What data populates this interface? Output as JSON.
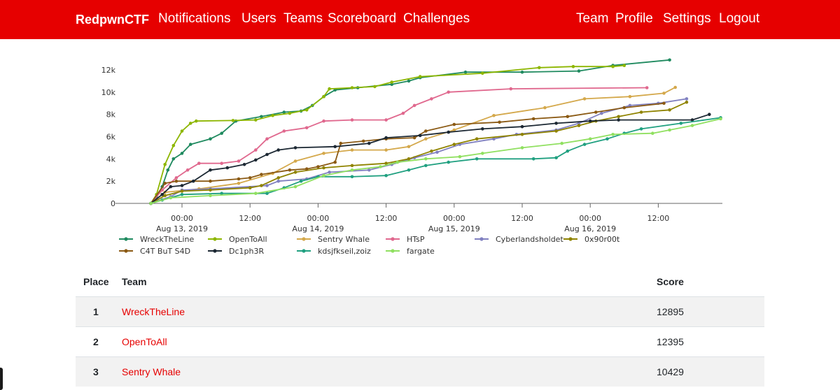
{
  "nav": {
    "brand": "RedpwnCTF",
    "left_items": [
      "Notifications",
      "Users",
      "Teams",
      "Scoreboard",
      "Challenges"
    ],
    "right_items": [
      "Team",
      "Profile",
      "Settings",
      "Logout"
    ]
  },
  "colors": {
    "accent": "#e60000",
    "row_stripe": "#f2f2f2"
  },
  "chart_data": {
    "type": "line",
    "y_ticks": [
      "0",
      "2k",
      "4k",
      "6k",
      "8k",
      "10k",
      "12k"
    ],
    "ylim": [
      0,
      13000
    ],
    "x_ticks": [
      {
        "time": "00:00",
        "date": "Aug 13, 2019",
        "hours": 0
      },
      {
        "time": "12:00",
        "date": "",
        "hours": 12
      },
      {
        "time": "00:00",
        "date": "Aug 14, 2019",
        "hours": 24
      },
      {
        "time": "12:00",
        "date": "",
        "hours": 36
      },
      {
        "time": "00:00",
        "date": "Aug 15, 2019",
        "hours": 48
      },
      {
        "time": "12:00",
        "date": "",
        "hours": 60
      },
      {
        "time": "00:00",
        "date": "Aug 16, 2019",
        "hours": 72
      },
      {
        "time": "12:00",
        "date": "",
        "hours": 84
      }
    ],
    "legend_placement": "bottom",
    "series": [
      {
        "name": "WreckTheLine",
        "color": "#1f8a5f",
        "points": [
          [
            -5.5,
            0
          ],
          [
            -4.5,
            500
          ],
          [
            -3.5,
            1500
          ],
          [
            -2.5,
            3000
          ],
          [
            -1.5,
            4000
          ],
          [
            0,
            4500
          ],
          [
            1.5,
            5300
          ],
          [
            5,
            5800
          ],
          [
            7,
            6300
          ],
          [
            9.5,
            7400
          ],
          [
            14,
            7800
          ],
          [
            18,
            8200
          ],
          [
            21,
            8300
          ],
          [
            23,
            8800
          ],
          [
            25,
            9600
          ],
          [
            27,
            10200
          ],
          [
            31,
            10400
          ],
          [
            37,
            10700
          ],
          [
            40,
            11000
          ],
          [
            42,
            11300
          ],
          [
            50,
            11800
          ],
          [
            60,
            11800
          ],
          [
            70,
            11900
          ],
          [
            76,
            12400
          ],
          [
            86,
            12895
          ]
        ]
      },
      {
        "name": "OpenToAll",
        "color": "#8db600",
        "points": [
          [
            -5.5,
            0
          ],
          [
            -4.5,
            800
          ],
          [
            -3,
            3500
          ],
          [
            -1.5,
            5200
          ],
          [
            0,
            6500
          ],
          [
            1.5,
            7200
          ],
          [
            2.5,
            7400
          ],
          [
            9,
            7450
          ],
          [
            13,
            7500
          ],
          [
            16,
            7900
          ],
          [
            19,
            8100
          ],
          [
            22,
            8400
          ],
          [
            25,
            9600
          ],
          [
            26,
            10300
          ],
          [
            30,
            10400
          ],
          [
            34,
            10500
          ],
          [
            37,
            10900
          ],
          [
            42,
            11400
          ],
          [
            53,
            11700
          ],
          [
            63,
            12200
          ],
          [
            69,
            12300
          ],
          [
            76,
            12300
          ],
          [
            78,
            12395
          ]
        ]
      },
      {
        "name": "Sentry Whale",
        "color": "#d4a84b",
        "points": [
          [
            -5.5,
            0
          ],
          [
            -3,
            1000
          ],
          [
            3,
            1300
          ],
          [
            10,
            1800
          ],
          [
            16,
            2700
          ],
          [
            20,
            3800
          ],
          [
            25,
            4500
          ],
          [
            30,
            4800
          ],
          [
            36,
            4800
          ],
          [
            40,
            5100
          ],
          [
            43,
            5800
          ],
          [
            48,
            6600
          ],
          [
            55,
            7900
          ],
          [
            64,
            8600
          ],
          [
            71,
            9400
          ],
          [
            79,
            9600
          ],
          [
            85,
            9900
          ],
          [
            87,
            10429
          ]
        ]
      },
      {
        "name": "HTsP",
        "color": "#e0688e",
        "points": [
          [
            -5.5,
            0
          ],
          [
            -3.5,
            1200
          ],
          [
            -1,
            2300
          ],
          [
            1,
            3000
          ],
          [
            3,
            3600
          ],
          [
            7,
            3600
          ],
          [
            10,
            3800
          ],
          [
            13,
            4800
          ],
          [
            15,
            5800
          ],
          [
            18,
            6500
          ],
          [
            22,
            6800
          ],
          [
            25,
            7400
          ],
          [
            30,
            7500
          ],
          [
            36,
            7500
          ],
          [
            39,
            8100
          ],
          [
            41,
            8800
          ],
          [
            44,
            9400
          ],
          [
            47,
            10000
          ],
          [
            58,
            10300
          ],
          [
            82,
            10400
          ]
        ]
      },
      {
        "name": "Cyberlandsholdet",
        "color": "#8080c0",
        "points": [
          [
            -5.5,
            0
          ],
          [
            -2,
            600
          ],
          [
            0,
            1200
          ],
          [
            5,
            1300
          ],
          [
            15,
            1600
          ],
          [
            17,
            2000
          ],
          [
            22,
            2200
          ],
          [
            26,
            2800
          ],
          [
            33,
            3000
          ],
          [
            37,
            3500
          ],
          [
            41,
            4100
          ],
          [
            45,
            4600
          ],
          [
            49,
            5300
          ],
          [
            55,
            5800
          ],
          [
            59,
            6200
          ],
          [
            66,
            6600
          ],
          [
            70,
            7200
          ],
          [
            74,
            8100
          ],
          [
            79,
            8800
          ],
          [
            84,
            9000
          ],
          [
            89,
            9400
          ]
        ]
      },
      {
        "name": "0x90r00t",
        "color": "#8f8300",
        "points": [
          [
            -5.5,
            0
          ],
          [
            -3,
            700
          ],
          [
            0,
            1100
          ],
          [
            5,
            1200
          ],
          [
            12,
            1400
          ],
          [
            14,
            1600
          ],
          [
            17,
            2300
          ],
          [
            20,
            2800
          ],
          [
            25,
            3200
          ],
          [
            30,
            3400
          ],
          [
            36,
            3600
          ],
          [
            40,
            4000
          ],
          [
            44,
            4700
          ],
          [
            48,
            5300
          ],
          [
            52,
            5800
          ],
          [
            60,
            6200
          ],
          [
            66,
            6500
          ],
          [
            70,
            7000
          ],
          [
            73,
            7400
          ],
          [
            77,
            7800
          ],
          [
            81,
            8200
          ],
          [
            86,
            8400
          ],
          [
            89,
            9100
          ]
        ]
      },
      {
        "name": "C4T BuT S4D",
        "color": "#8b5a14",
        "points": [
          [
            -5.5,
            0
          ],
          [
            -3,
            1800
          ],
          [
            -1,
            2000
          ],
          [
            5,
            2000
          ],
          [
            10,
            2200
          ],
          [
            12,
            2300
          ],
          [
            14,
            2600
          ],
          [
            19,
            3000
          ],
          [
            22,
            3100
          ],
          [
            24,
            3300
          ],
          [
            27,
            3700
          ],
          [
            28,
            5400
          ],
          [
            32,
            5600
          ],
          [
            36,
            5800
          ],
          [
            41,
            5900
          ],
          [
            43,
            6500
          ],
          [
            48,
            7100
          ],
          [
            56,
            7300
          ],
          [
            62,
            7600
          ],
          [
            68,
            7800
          ],
          [
            73,
            8200
          ],
          [
            78,
            8600
          ],
          [
            85,
            9000
          ]
        ]
      },
      {
        "name": "Dc1ph3R",
        "color": "#1c2833",
        "points": [
          [
            -5.5,
            0
          ],
          [
            -3.5,
            800
          ],
          [
            -2,
            1500
          ],
          [
            0,
            1600
          ],
          [
            2,
            2000
          ],
          [
            5,
            3000
          ],
          [
            8,
            3200
          ],
          [
            11,
            3500
          ],
          [
            13,
            3900
          ],
          [
            15,
            4400
          ],
          [
            17,
            4800
          ],
          [
            20,
            5000
          ],
          [
            27,
            5100
          ],
          [
            33,
            5400
          ],
          [
            36,
            5900
          ],
          [
            42,
            6100
          ],
          [
            47,
            6400
          ],
          [
            53,
            6700
          ],
          [
            60,
            6900
          ],
          [
            66,
            7200
          ],
          [
            72,
            7400
          ],
          [
            77,
            7500
          ],
          [
            90,
            7500
          ],
          [
            93,
            8000
          ]
        ]
      },
      {
        "name": "kdsjfkseil,zoiz",
        "color": "#20a080",
        "points": [
          [
            -5.5,
            0
          ],
          [
            -3.5,
            300
          ],
          [
            0,
            800
          ],
          [
            7,
            900
          ],
          [
            15,
            900
          ],
          [
            18,
            1400
          ],
          [
            21,
            2000
          ],
          [
            24,
            2400
          ],
          [
            30,
            2400
          ],
          [
            36,
            2500
          ],
          [
            40,
            3000
          ],
          [
            43,
            3400
          ],
          [
            47,
            3700
          ],
          [
            52,
            4000
          ],
          [
            62,
            4000
          ],
          [
            66,
            4100
          ],
          [
            68,
            4700
          ],
          [
            71,
            5300
          ],
          [
            75,
            5800
          ],
          [
            78,
            6300
          ],
          [
            81,
            6700
          ],
          [
            88,
            7200
          ],
          [
            95,
            7700
          ]
        ]
      },
      {
        "name": "fargate",
        "color": "#90e060",
        "points": [
          [
            -5.5,
            0
          ],
          [
            -2,
            500
          ],
          [
            5,
            700
          ],
          [
            13,
            900
          ],
          [
            20,
            1500
          ],
          [
            25,
            2500
          ],
          [
            30,
            3000
          ],
          [
            35,
            3300
          ],
          [
            38,
            3700
          ],
          [
            43,
            4000
          ],
          [
            49,
            4200
          ],
          [
            53,
            4500
          ],
          [
            60,
            5000
          ],
          [
            67,
            5400
          ],
          [
            72,
            5800
          ],
          [
            76,
            6200
          ],
          [
            83,
            6300
          ],
          [
            86,
            6600
          ],
          [
            90,
            7000
          ],
          [
            95,
            7600
          ]
        ]
      }
    ]
  },
  "table": {
    "headers": {
      "place": "Place",
      "team": "Team",
      "score": "Score"
    },
    "rows": [
      {
        "place": "1",
        "team": "WreckTheLine",
        "score": "12895"
      },
      {
        "place": "2",
        "team": "OpenToAll",
        "score": "12395"
      },
      {
        "place": "3",
        "team": "Sentry Whale",
        "score": "10429"
      }
    ]
  }
}
